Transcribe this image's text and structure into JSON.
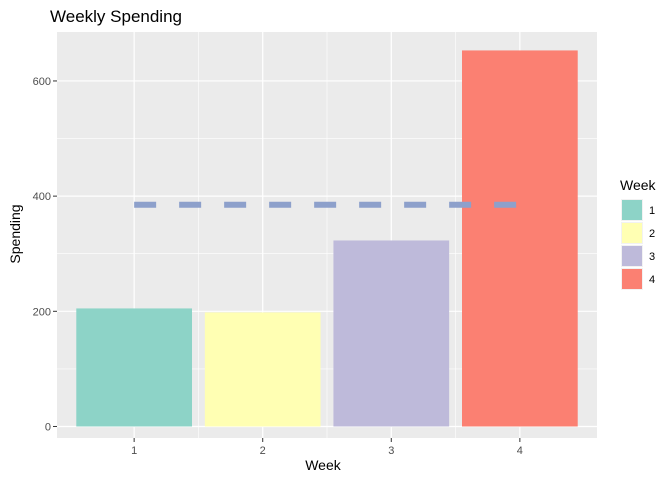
{
  "chart_data": {
    "type": "bar",
    "title": "Weekly Spending",
    "xlabel": "Week",
    "ylabel": "Spending",
    "categories": [
      "1",
      "2",
      "3",
      "4"
    ],
    "values": [
      205,
      198,
      323,
      653
    ],
    "colors": [
      "#8DD3C7",
      "#FFFFB3",
      "#BEBADA",
      "#FB8072"
    ],
    "ylim": [
      -20,
      685
    ],
    "y_ticks": [
      0,
      200,
      400,
      600
    ],
    "reference_line": {
      "y": 385,
      "style": "dashed",
      "color": "#8DA0CB"
    },
    "legend": {
      "title": "Week",
      "position": "right",
      "entries": [
        "1",
        "2",
        "3",
        "4"
      ]
    },
    "grid": true,
    "background": "#EBEBEB"
  }
}
